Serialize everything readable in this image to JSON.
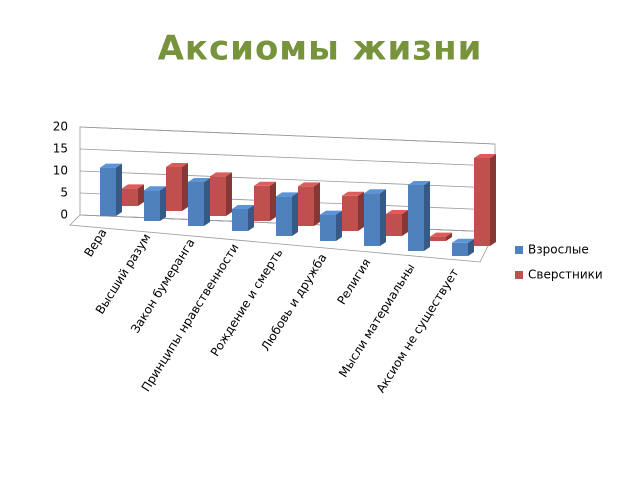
{
  "chart_data": {
    "type": "bar3d",
    "title": "Аксиомы жизни",
    "categories": [
      "Вера",
      "Высший разум",
      "Закон бумеранга",
      "Принципы нравственности",
      "Рождение и смерть",
      "Любовь и дружба",
      "Религия",
      "Мысли материальны",
      "Аксиом не существует"
    ],
    "series": [
      {
        "name": "Взрослые",
        "color": "#4f81bd",
        "values": [
          11,
          7,
          10,
          5,
          9,
          6,
          12,
          15,
          3
        ]
      },
      {
        "name": "Сверстники",
        "color": "#c0504d",
        "values": [
          4,
          10,
          9,
          8,
          9,
          8,
          5,
          1,
          20
        ]
      }
    ],
    "ylim": [
      0,
      20
    ],
    "yticks": [
      0,
      5,
      10,
      15,
      20
    ],
    "grid": true,
    "legend": "right"
  }
}
